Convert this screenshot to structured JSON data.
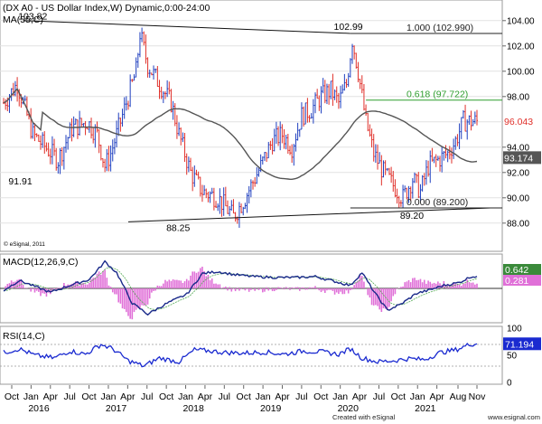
{
  "chart_data": [
    {
      "type": "candlestick",
      "title": "(DX A0 - US Dollar Index,W) Dynamic,0:00-24:00",
      "overlay_label": "MA(55,C)",
      "source_note": "© eSignal, 2011",
      "ylim": [
        86.2,
        105.2
      ],
      "yticks": [
        "104.00",
        "102.00",
        "100.00",
        "98.00",
        "96.00",
        "94.00",
        "92.00",
        "90.00",
        "88.00"
      ],
      "last_price": "96.043",
      "ma_last": "93.174",
      "price_anchors": [
        {
          "t": 0,
          "v": 97.5
        },
        {
          "t": 7,
          "v": 99.0
        },
        {
          "t": 15,
          "v": 95.0
        },
        {
          "t": 28,
          "v": 93.0
        },
        {
          "t": 35,
          "v": 95.5
        },
        {
          "t": 43,
          "v": 96.0
        },
        {
          "t": 48,
          "v": 95.0
        },
        {
          "t": 52,
          "v": 92.5
        },
        {
          "t": 55,
          "v": 93.5
        },
        {
          "t": 62,
          "v": 97.0
        },
        {
          "t": 68,
          "v": 100.0
        },
        {
          "t": 70,
          "v": 103.0
        },
        {
          "t": 74,
          "v": 100.5
        },
        {
          "t": 80,
          "v": 99.0
        },
        {
          "t": 86,
          "v": 97.5
        },
        {
          "t": 90,
          "v": 95.0
        },
        {
          "t": 96,
          "v": 92.0
        },
        {
          "t": 102,
          "v": 90.5
        },
        {
          "t": 110,
          "v": 90.0
        },
        {
          "t": 118,
          "v": 88.5
        },
        {
          "t": 124,
          "v": 90.0
        },
        {
          "t": 132,
          "v": 92.5
        },
        {
          "t": 138,
          "v": 94.5
        },
        {
          "t": 143,
          "v": 95.0
        },
        {
          "t": 148,
          "v": 94.0
        },
        {
          "t": 153,
          "v": 96.5
        },
        {
          "t": 158,
          "v": 97.0
        },
        {
          "t": 163,
          "v": 98.0
        },
        {
          "t": 168,
          "v": 98.5
        },
        {
          "t": 172,
          "v": 97.5
        },
        {
          "t": 176,
          "v": 99.0
        },
        {
          "t": 179,
          "v": 102.5
        },
        {
          "t": 182,
          "v": 100.0
        },
        {
          "t": 186,
          "v": 96.0
        },
        {
          "t": 190,
          "v": 93.5
        },
        {
          "t": 195,
          "v": 92.0
        },
        {
          "t": 200,
          "v": 91.0
        },
        {
          "t": 205,
          "v": 90.0
        },
        {
          "t": 210,
          "v": 91.5
        },
        {
          "t": 214,
          "v": 90.5
        },
        {
          "t": 218,
          "v": 92.5
        },
        {
          "t": 223,
          "v": 93.0
        },
        {
          "t": 228,
          "v": 93.5
        },
        {
          "t": 232,
          "v": 94.5
        },
        {
          "t": 236,
          "v": 96.04
        }
      ],
      "price_labels": [
        {
          "text": "103.82",
          "t": 14,
          "v": 103.82
        },
        {
          "text": "91.91",
          "t": 9,
          "v": 91.91
        },
        {
          "text": "88.25",
          "t": 90,
          "v": 88.25
        },
        {
          "text": "102.99",
          "t": 176,
          "v": 102.99
        },
        {
          "text": "89.20",
          "t": 210,
          "v": 89.2
        }
      ],
      "trendlines": [
        {
          "t1": 10,
          "v1": 104.0,
          "t2": 178,
          "v2": 102.99
        },
        {
          "t1": 64,
          "v1": 88.1,
          "t2": 250,
          "v2": 89.2
        }
      ],
      "fib_levels": [
        {
          "label": "1.000 (102.990)",
          "v": 102.99,
          "color": "#222222"
        },
        {
          "label": "0.618 (97.722)",
          "v": 97.722,
          "color": "#2e9e2e"
        },
        {
          "label": "0.000 (89.200)",
          "v": 89.2,
          "color": "#222222"
        }
      ]
    },
    {
      "type": "line",
      "title": "MACD(12,26,9,C)",
      "last_values": [
        "0.642",
        "0.281"
      ],
      "macd_anchors": [
        {
          "t": 0,
          "v": -0.2
        },
        {
          "t": 8,
          "v": 0.8
        },
        {
          "t": 16,
          "v": 0.2
        },
        {
          "t": 24,
          "v": -0.4
        },
        {
          "t": 34,
          "v": 0.3
        },
        {
          "t": 44,
          "v": 0.9
        },
        {
          "t": 52,
          "v": 2.7
        },
        {
          "t": 58,
          "v": 1.6
        },
        {
          "t": 66,
          "v": -1.5
        },
        {
          "t": 74,
          "v": -2.6
        },
        {
          "t": 84,
          "v": -1.5
        },
        {
          "t": 94,
          "v": -0.6
        },
        {
          "t": 102,
          "v": 1.5
        },
        {
          "t": 110,
          "v": 1.7
        },
        {
          "t": 118,
          "v": 1.4
        },
        {
          "t": 128,
          "v": 1.2
        },
        {
          "t": 140,
          "v": 1.1
        },
        {
          "t": 150,
          "v": 1.1
        },
        {
          "t": 160,
          "v": 1.2
        },
        {
          "t": 170,
          "v": 0.7
        },
        {
          "t": 178,
          "v": 0.3
        },
        {
          "t": 184,
          "v": 1.6
        },
        {
          "t": 190,
          "v": -0.3
        },
        {
          "t": 197,
          "v": -2.2
        },
        {
          "t": 204,
          "v": -1.6
        },
        {
          "t": 212,
          "v": -0.5
        },
        {
          "t": 218,
          "v": -0.2
        },
        {
          "t": 226,
          "v": 0.3
        },
        {
          "t": 234,
          "v": 0.6
        },
        {
          "t": 240,
          "v": 1.2
        }
      ]
    },
    {
      "type": "line",
      "title": "RSI(14,C)",
      "yticks": [
        "100",
        "50",
        "0"
      ],
      "last_value": "71.194",
      "rsi_anchors": [
        {
          "t": 0,
          "v": 55
        },
        {
          "t": 8,
          "v": 62
        },
        {
          "t": 16,
          "v": 50
        },
        {
          "t": 26,
          "v": 45
        },
        {
          "t": 34,
          "v": 58
        },
        {
          "t": 42,
          "v": 52
        },
        {
          "t": 50,
          "v": 70
        },
        {
          "t": 56,
          "v": 62
        },
        {
          "t": 64,
          "v": 40
        },
        {
          "t": 72,
          "v": 30
        },
        {
          "t": 80,
          "v": 45
        },
        {
          "t": 90,
          "v": 38
        },
        {
          "t": 98,
          "v": 60
        },
        {
          "t": 106,
          "v": 58
        },
        {
          "t": 114,
          "v": 55
        },
        {
          "t": 124,
          "v": 54
        },
        {
          "t": 134,
          "v": 56
        },
        {
          "t": 144,
          "v": 52
        },
        {
          "t": 154,
          "v": 58
        },
        {
          "t": 164,
          "v": 56
        },
        {
          "t": 172,
          "v": 52
        },
        {
          "t": 178,
          "v": 62
        },
        {
          "t": 184,
          "v": 45
        },
        {
          "t": 192,
          "v": 38
        },
        {
          "t": 200,
          "v": 40
        },
        {
          "t": 208,
          "v": 44
        },
        {
          "t": 216,
          "v": 42
        },
        {
          "t": 224,
          "v": 55
        },
        {
          "t": 232,
          "v": 60
        },
        {
          "t": 240,
          "v": 71
        }
      ]
    }
  ],
  "time_axis": {
    "months": [
      "Oct",
      "Jan",
      "Apr",
      "Jul",
      "Oct",
      "Jan",
      "Apr",
      "Jul",
      "Oct",
      "Jan",
      "Apr",
      "Jul",
      "Oct",
      "Jan",
      "Apr",
      "Jul",
      "Oct",
      "Jan",
      "Apr",
      "Jul",
      "Oct",
      "Jan",
      "Apr",
      "Aug",
      "Nov"
    ],
    "years": [
      "2016",
      "2017",
      "2018",
      "2019",
      "2020",
      "2021"
    ],
    "footer": "Created with eSignal",
    "footer_url": "www.esignal.com"
  },
  "colors": {
    "up": "#1f3fbf",
    "down": "#e0302a",
    "ma": "#555555",
    "macd": "#1a2a8a",
    "hist": "#e070d8",
    "rsi": "#1a2ad0",
    "fib618": "#2e9e2e"
  }
}
